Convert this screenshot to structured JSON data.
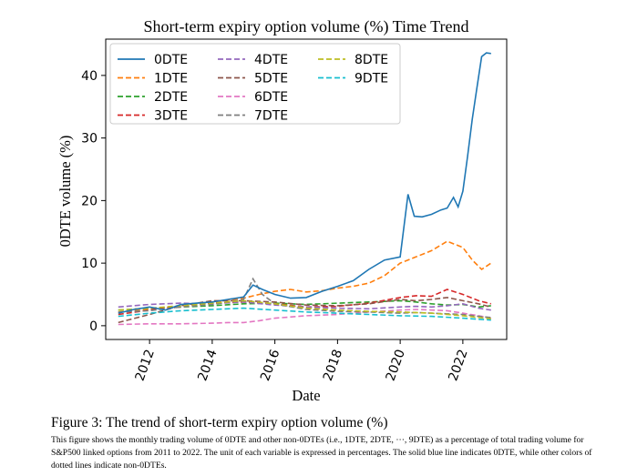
{
  "chart_data": {
    "type": "line",
    "title": "Short-term expiry option volume (%) Time Trend",
    "xlabel": "Date",
    "ylabel": "0DTE volume (%)",
    "xlim": [
      2010.6,
      2023.4
    ],
    "ylim": [
      -2.2,
      45.8
    ],
    "xticks": [
      2012,
      2014,
      2016,
      2018,
      2020,
      2022
    ],
    "yticks": [
      0,
      10,
      20,
      30,
      40
    ],
    "grid": false,
    "legend_position": "top-left",
    "series": [
      {
        "name": "0DTE",
        "color": "#1f77b4",
        "dash": "solid",
        "points": [
          [
            2011.0,
            2.0
          ],
          [
            2011.5,
            2.6
          ],
          [
            2012.0,
            3.0
          ],
          [
            2012.5,
            2.5
          ],
          [
            2013.0,
            3.4
          ],
          [
            2013.5,
            3.6
          ],
          [
            2014.0,
            3.8
          ],
          [
            2014.5,
            4.2
          ],
          [
            2015.0,
            4.6
          ],
          [
            2015.3,
            6.5
          ],
          [
            2015.6,
            5.8
          ],
          [
            2016.0,
            5.0
          ],
          [
            2016.5,
            4.4
          ],
          [
            2017.0,
            4.5
          ],
          [
            2017.5,
            5.5
          ],
          [
            2018.0,
            6.3
          ],
          [
            2018.5,
            7.2
          ],
          [
            2019.0,
            9.0
          ],
          [
            2019.5,
            10.5
          ],
          [
            2020.0,
            11.0
          ],
          [
            2020.25,
            21.0
          ],
          [
            2020.45,
            17.5
          ],
          [
            2020.7,
            17.4
          ],
          [
            2021.0,
            17.8
          ],
          [
            2021.3,
            18.5
          ],
          [
            2021.5,
            18.8
          ],
          [
            2021.7,
            20.5
          ],
          [
            2021.85,
            19.0
          ],
          [
            2022.0,
            21.5
          ],
          [
            2022.15,
            27.0
          ],
          [
            2022.3,
            33.0
          ],
          [
            2022.45,
            38.0
          ],
          [
            2022.6,
            43.0
          ],
          [
            2022.75,
            43.6
          ],
          [
            2022.9,
            43.5
          ]
        ]
      },
      {
        "name": "1DTE",
        "color": "#ff7f0e",
        "dash": "dashed",
        "points": [
          [
            2011.0,
            2.2
          ],
          [
            2012.0,
            2.6
          ],
          [
            2013.0,
            3.0
          ],
          [
            2014.0,
            3.8
          ],
          [
            2015.0,
            4.4
          ],
          [
            2015.5,
            5.0
          ],
          [
            2016.0,
            5.5
          ],
          [
            2016.5,
            5.8
          ],
          [
            2017.0,
            5.4
          ],
          [
            2017.5,
            5.6
          ],
          [
            2018.0,
            6.0
          ],
          [
            2018.5,
            6.3
          ],
          [
            2019.0,
            6.8
          ],
          [
            2019.5,
            8.0
          ],
          [
            2020.0,
            10.0
          ],
          [
            2020.5,
            11.0
          ],
          [
            2021.0,
            12.0
          ],
          [
            2021.5,
            13.5
          ],
          [
            2022.0,
            12.5
          ],
          [
            2022.3,
            10.5
          ],
          [
            2022.6,
            9.0
          ],
          [
            2022.9,
            10.0
          ]
        ]
      },
      {
        "name": "2DTE",
        "color": "#2ca02c",
        "dash": "dashed",
        "points": [
          [
            2011.0,
            2.5
          ],
          [
            2012.0,
            2.8
          ],
          [
            2013.0,
            3.0
          ],
          [
            2014.0,
            3.2
          ],
          [
            2015.0,
            3.5
          ],
          [
            2016.0,
            3.6
          ],
          [
            2017.0,
            3.4
          ],
          [
            2018.0,
            3.6
          ],
          [
            2019.0,
            3.8
          ],
          [
            2020.0,
            4.0
          ],
          [
            2020.5,
            3.8
          ],
          [
            2021.0,
            3.5
          ],
          [
            2021.5,
            3.3
          ],
          [
            2022.0,
            3.4
          ],
          [
            2022.5,
            3.0
          ],
          [
            2022.9,
            3.2
          ]
        ]
      },
      {
        "name": "3DTE",
        "color": "#d62728",
        "dash": "dashed",
        "points": [
          [
            2011.0,
            1.8
          ],
          [
            2012.0,
            2.5
          ],
          [
            2013.0,
            3.2
          ],
          [
            2014.0,
            3.6
          ],
          [
            2015.0,
            3.8
          ],
          [
            2016.0,
            3.5
          ],
          [
            2017.0,
            3.0
          ],
          [
            2018.0,
            3.1
          ],
          [
            2019.0,
            3.6
          ],
          [
            2020.0,
            4.5
          ],
          [
            2020.5,
            4.8
          ],
          [
            2021.0,
            4.7
          ],
          [
            2021.5,
            5.8
          ],
          [
            2022.0,
            5.0
          ],
          [
            2022.5,
            4.0
          ],
          [
            2022.9,
            3.5
          ]
        ]
      },
      {
        "name": "4DTE",
        "color": "#9467bd",
        "dash": "dashed",
        "points": [
          [
            2011.0,
            3.0
          ],
          [
            2012.0,
            3.4
          ],
          [
            2013.0,
            3.6
          ],
          [
            2014.0,
            3.5
          ],
          [
            2015.0,
            3.8
          ],
          [
            2016.0,
            3.3
          ],
          [
            2017.0,
            3.0
          ],
          [
            2018.0,
            2.8
          ],
          [
            2019.0,
            2.7
          ],
          [
            2020.0,
            3.0
          ],
          [
            2020.5,
            3.1
          ],
          [
            2021.0,
            3.0
          ],
          [
            2021.5,
            3.2
          ],
          [
            2022.0,
            3.5
          ],
          [
            2022.5,
            2.8
          ],
          [
            2022.9,
            2.5
          ]
        ]
      },
      {
        "name": "5DTE",
        "color": "#8c564b",
        "dash": "dashed",
        "points": [
          [
            2011.0,
            0.5
          ],
          [
            2012.0,
            1.8
          ],
          [
            2013.0,
            3.2
          ],
          [
            2014.0,
            4.0
          ],
          [
            2015.0,
            4.0
          ],
          [
            2016.0,
            3.8
          ],
          [
            2017.0,
            3.3
          ],
          [
            2018.0,
            3.2
          ],
          [
            2019.0,
            3.5
          ],
          [
            2020.0,
            4.2
          ],
          [
            2020.5,
            4.0
          ],
          [
            2021.0,
            4.2
          ],
          [
            2021.5,
            4.5
          ],
          [
            2022.0,
            4.0
          ],
          [
            2022.5,
            3.5
          ],
          [
            2022.9,
            3.0
          ]
        ]
      },
      {
        "name": "6DTE",
        "color": "#e377c2",
        "dash": "dashed",
        "points": [
          [
            2011.0,
            0.2
          ],
          [
            2012.0,
            0.3
          ],
          [
            2013.0,
            0.3
          ],
          [
            2014.0,
            0.4
          ],
          [
            2014.5,
            0.5
          ],
          [
            2015.0,
            0.5
          ],
          [
            2015.5,
            0.8
          ],
          [
            2016.0,
            1.2
          ],
          [
            2017.0,
            1.6
          ],
          [
            2018.0,
            1.8
          ],
          [
            2019.0,
            2.2
          ],
          [
            2020.0,
            2.5
          ],
          [
            2020.5,
            2.6
          ],
          [
            2021.0,
            2.5
          ],
          [
            2021.5,
            2.4
          ],
          [
            2022.0,
            2.0
          ],
          [
            2022.5,
            1.6
          ],
          [
            2022.9,
            1.2
          ]
        ]
      },
      {
        "name": "7DTE",
        "color": "#7f7f7f",
        "dash": "dashed",
        "points": [
          [
            2011.0,
            2.2
          ],
          [
            2012.0,
            2.4
          ],
          [
            2013.0,
            3.0
          ],
          [
            2014.0,
            3.4
          ],
          [
            2015.0,
            4.2
          ],
          [
            2015.3,
            7.5
          ],
          [
            2015.6,
            5.0
          ],
          [
            2016.0,
            3.5
          ],
          [
            2017.0,
            2.6
          ],
          [
            2018.0,
            2.3
          ],
          [
            2019.0,
            2.2
          ],
          [
            2020.0,
            2.0
          ],
          [
            2020.5,
            2.1
          ],
          [
            2021.0,
            2.0
          ],
          [
            2021.5,
            1.9
          ],
          [
            2022.0,
            1.8
          ],
          [
            2022.5,
            1.5
          ],
          [
            2022.9,
            1.3
          ]
        ]
      },
      {
        "name": "8DTE",
        "color": "#bcbd22",
        "dash": "dashed",
        "points": [
          [
            2011.0,
            2.5
          ],
          [
            2012.0,
            2.8
          ],
          [
            2013.0,
            3.2
          ],
          [
            2014.0,
            3.6
          ],
          [
            2015.0,
            4.0
          ],
          [
            2016.0,
            3.5
          ],
          [
            2017.0,
            2.8
          ],
          [
            2018.0,
            2.5
          ],
          [
            2019.0,
            2.3
          ],
          [
            2020.0,
            2.2
          ],
          [
            2021.0,
            2.0
          ],
          [
            2022.0,
            1.6
          ],
          [
            2022.9,
            1.1
          ]
        ]
      },
      {
        "name": "9DTE",
        "color": "#17becf",
        "dash": "dashed",
        "points": [
          [
            2011.0,
            1.5
          ],
          [
            2012.0,
            2.0
          ],
          [
            2013.0,
            2.4
          ],
          [
            2014.0,
            2.6
          ],
          [
            2015.0,
            2.8
          ],
          [
            2016.0,
            2.5
          ],
          [
            2017.0,
            2.2
          ],
          [
            2018.0,
            2.0
          ],
          [
            2019.0,
            1.8
          ],
          [
            2020.0,
            1.6
          ],
          [
            2021.0,
            1.5
          ],
          [
            2022.0,
            1.2
          ],
          [
            2022.9,
            0.9
          ]
        ]
      }
    ]
  },
  "caption": {
    "title": "Figure 3: The trend of short-term expiry option volume (%)",
    "body": "This figure shows the monthly trading volume of 0DTE and other non-0DTEs (i.e., 1DTE, 2DTE, ···, 9DTE) as a percentage of total trading volume for S&P500 linked options from 2011 to 2022. The unit of each variable is expressed in percentages. The solid blue line indicates 0DTE, while other colors of dotted lines indicate non-0DTEs."
  }
}
